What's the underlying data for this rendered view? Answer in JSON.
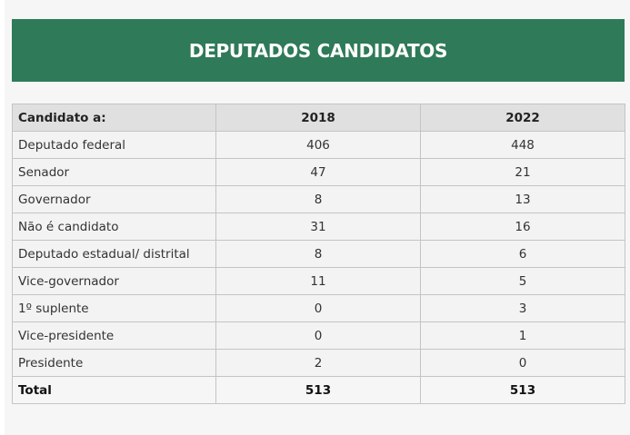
{
  "title": "DEPUTADOS CANDIDATOS",
  "colors": {
    "banner": "#2f7a58",
    "header_bg": "#e0e0e0"
  },
  "table": {
    "headers": [
      "Candidato a:",
      "2018",
      "2022"
    ],
    "rows": [
      [
        "Deputado federal",
        "406",
        "448"
      ],
      [
        "Senador",
        "47",
        "21"
      ],
      [
        "Governador",
        "8",
        "13"
      ],
      [
        "Não é candidato",
        "31",
        "16"
      ],
      [
        "Deputado estadual/ distrital",
        "8",
        "6"
      ],
      [
        "Vice-governador",
        "11",
        "5"
      ],
      [
        "1º suplente",
        "0",
        "3"
      ],
      [
        "Vice-presidente",
        "0",
        "1"
      ],
      [
        "Presidente",
        "2",
        "0"
      ]
    ],
    "total": [
      "Total",
      "513",
      "513"
    ]
  }
}
